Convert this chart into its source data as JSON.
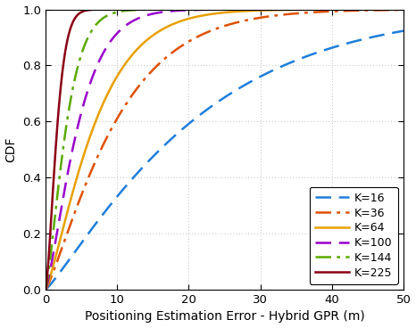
{
  "title": "",
  "xlabel": "Positioning Estimation Error - Hybrid GPR (m)",
  "ylabel": "CDF",
  "xlim": [
    0,
    50
  ],
  "ylim": [
    0,
    1
  ],
  "xticks": [
    0,
    10,
    20,
    30,
    40,
    50
  ],
  "yticks": [
    0,
    0.2,
    0.4,
    0.6,
    0.8,
    1.0
  ],
  "series": [
    {
      "label": "K=16",
      "color": "#1e7edb",
      "linestyle": "dashed",
      "linewidth": 1.8,
      "scale": 22.0,
      "shape": 1.15
    },
    {
      "label": "K=36",
      "color": "#e05000",
      "linestyle": "dashdot",
      "linewidth": 1.8,
      "scale": 10.5,
      "shape": 1.2
    },
    {
      "label": "K=64",
      "color": "#e8a000",
      "linestyle": "solid",
      "linewidth": 1.8,
      "scale": 7.5,
      "shape": 1.25
    },
    {
      "label": "K=100",
      "color": "#9900cc",
      "linestyle": "dashed",
      "linewidth": 1.8,
      "scale": 5.0,
      "shape": 1.3
    },
    {
      "label": "K=144",
      "color": "#5aaa00",
      "linestyle": "dashdot",
      "linewidth": 1.8,
      "scale": 3.2,
      "shape": 1.35
    },
    {
      "label": "K=225",
      "color": "#8b0015",
      "linestyle": "solid",
      "linewidth": 1.8,
      "scale": 1.8,
      "shape": 1.5
    }
  ],
  "background_color": "#ffffff",
  "grid_color": "#aaaaaa",
  "legend_loc": "lower right",
  "figsize": [
    4.66,
    3.68
  ],
  "dpi": 100
}
